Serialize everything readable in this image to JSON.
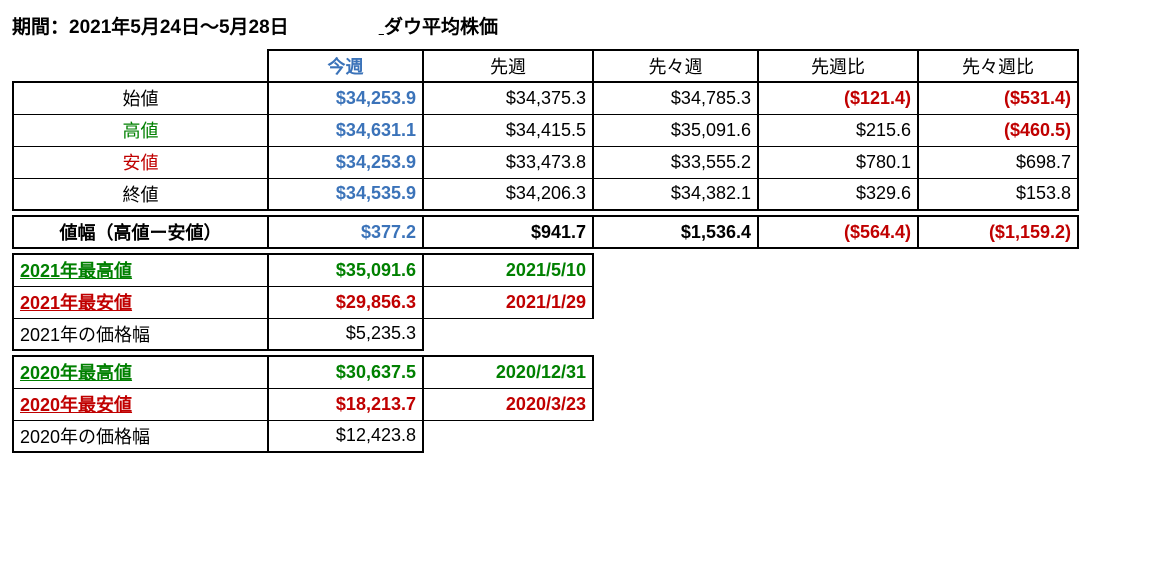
{
  "header": {
    "period": "期間：2021年5月24日～5月28日",
    "title": "ダウ平均株価"
  },
  "columns": {
    "this_week": "今週",
    "last_week": "先週",
    "two_weeks_ago": "先々週",
    "vs_last_week": "先週比",
    "vs_two_weeks_ago": "先々週比"
  },
  "rows": {
    "open": {
      "label": "始値",
      "this": "$34,253.9",
      "last": "$34,375.3",
      "two": "$34,785.3",
      "d1": "($121.4)",
      "d2": "($531.4)"
    },
    "high": {
      "label": "高値",
      "this": "$34,631.1",
      "last": "$34,415.5",
      "two": "$35,091.6",
      "d1": "$215.6",
      "d2": "($460.5)"
    },
    "low": {
      "label": "安値",
      "this": "$34,253.9",
      "last": "$33,473.8",
      "two": "$33,555.2",
      "d1": "$780.1",
      "d2": "$698.7"
    },
    "close": {
      "label": "終値",
      "this": "$34,535.9",
      "last": "$34,206.3",
      "two": "$34,382.1",
      "d1": "$329.6",
      "d2": "$153.8"
    }
  },
  "range_row": {
    "label": "値幅（高値ー安値）",
    "this": "$377.2",
    "last": "$941.7",
    "two": "$1,536.4",
    "d1": "($564.4)",
    "d2": "($1,159.2)"
  },
  "year2021": {
    "high_label": "2021年最高値",
    "high_value": "$35,091.6",
    "high_date": "2021/5/10",
    "low_label": "2021年最安値",
    "low_value": "$29,856.3",
    "low_date": "2021/1/29",
    "range_label": "2021年の価格幅",
    "range_value": "$5,235.3"
  },
  "year2020": {
    "high_label": "2020年最高値",
    "high_value": "$30,637.5",
    "high_date": "2020/12/31",
    "low_label": "2020年最安値",
    "low_value": "$18,213.7",
    "low_date": "2020/3/23",
    "range_label": "2020年の価格幅",
    "range_value": "$12,423.8"
  },
  "colors": {
    "blue": "#3b73b9",
    "green": "#008000",
    "red": "#c00000",
    "black": "#000000",
    "background": "#ffffff"
  }
}
